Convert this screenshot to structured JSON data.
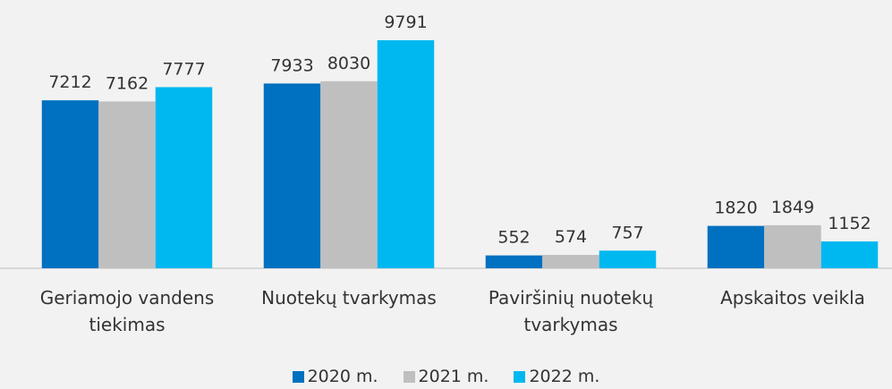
{
  "chart_data": {
    "type": "bar",
    "categories": [
      "Geriamojo vandens tiekimas",
      "Nuotekų tvarkymas",
      "Paviršinių nuotekų tvarkymas",
      "Apskaitos veikla"
    ],
    "series": [
      {
        "name": "2020 m.",
        "color": "#0070c0",
        "values": [
          7212,
          7933,
          552,
          1820
        ]
      },
      {
        "name": "2021 m.",
        "color": "#bfbfbf",
        "values": [
          7162,
          8030,
          574,
          1849
        ]
      },
      {
        "name": "2022 m.",
        "color": "#00b8f0",
        "values": [
          7777,
          9791,
          757,
          1152
        ]
      }
    ],
    "legend": "bottom"
  }
}
